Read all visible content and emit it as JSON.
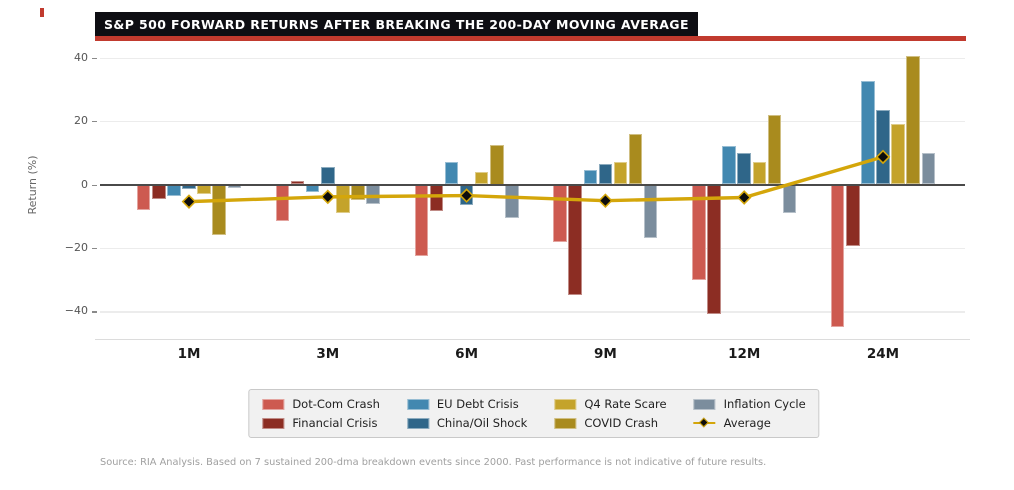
{
  "title": "S&P 500 FORWARD RETURNS AFTER BREAKING THE 200-DAY MOVING AVERAGE",
  "source_note": "Source: RIA Analysis. Based on 7 sustained 200-dma breakdown events since 2000. Past performance is not indicative of future results.",
  "colors": {
    "accent_red": "#c13a2e",
    "title_bg": "#0e0e13",
    "zero_line": "#4a4a4a",
    "gridline": "#ececec",
    "average_line": "#d4a60a",
    "average_marker": "#0d0d0d"
  },
  "chart_data": {
    "type": "bar",
    "title": "S&P 500 FORWARD RETURNS AFTER BREAKING THE 200-DAY MOVING AVERAGE",
    "categories": [
      "1M",
      "3M",
      "6M",
      "9M",
      "12M",
      "24M"
    ],
    "series": [
      {
        "name": "Dot-Com Crash",
        "color": "#cd5a50",
        "values": [
          -8,
          -11.5,
          -22.5,
          -18,
          -30,
          -45
        ]
      },
      {
        "name": "Financial Crisis",
        "color": "#8c2d23",
        "values": [
          -4.5,
          1,
          -8.5,
          -35,
          -41,
          -19.5
        ]
      },
      {
        "name": "EU Debt Crisis",
        "color": "#4288b0",
        "values": [
          -3.5,
          -2.5,
          7,
          4.5,
          12,
          32.5
        ]
      },
      {
        "name": "China/Oil Shock",
        "color": "#2f6689",
        "values": [
          -1.5,
          5.5,
          -6.5,
          6.5,
          10,
          23.5
        ]
      },
      {
        "name": "Q4 Rate Scare",
        "color": "#c4a32b",
        "values": [
          -3,
          -9,
          4,
          7,
          7,
          19
        ]
      },
      {
        "name": "COVID Crash",
        "color": "#a98b1e",
        "values": [
          -16,
          -5,
          12.5,
          16,
          22,
          40.5
        ]
      },
      {
        "name": "Inflation Cycle",
        "color": "#7b8d9d",
        "values": [
          -1,
          -6,
          -10.5,
          -17,
          -9,
          10
        ]
      }
    ],
    "average": {
      "name": "Average",
      "color": "#d4a60a",
      "values": [
        -5.4,
        -3.9,
        -3.5,
        -5.1,
        -4.1,
        8.7
      ]
    },
    "xlabel": "",
    "ylabel": "Return (%)",
    "yticks": [
      40,
      20,
      0,
      -20,
      -40
    ],
    "ytick_labels": [
      "40",
      "20",
      "0",
      "−20",
      "−40"
    ],
    "ylim": [
      -48.7,
      43.4
    ],
    "grid": true,
    "legend_position": "bottom"
  }
}
